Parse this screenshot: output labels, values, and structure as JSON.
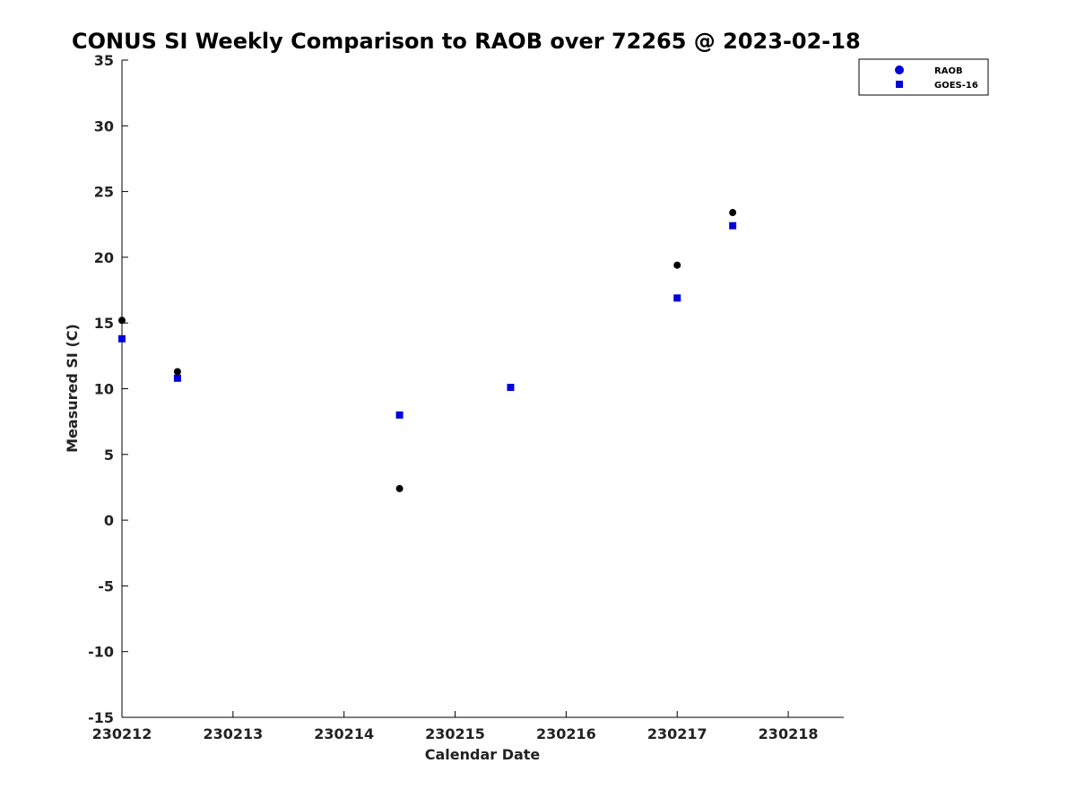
{
  "chart_data": {
    "type": "scatter",
    "title": "CONUS SI Weekly Comparison to RAOB over 72265 @ 2023-02-18",
    "xlabel": "Calendar Date",
    "ylabel": "Measured SI (C)",
    "xlim": [
      0,
      6.5
    ],
    "ylim": [
      -15,
      35
    ],
    "x_ticks": [
      {
        "value": 0,
        "label": "230212"
      },
      {
        "value": 1,
        "label": "230213"
      },
      {
        "value": 2,
        "label": "230214"
      },
      {
        "value": 3,
        "label": "230215"
      },
      {
        "value": 4,
        "label": "230216"
      },
      {
        "value": 5,
        "label": "230217"
      },
      {
        "value": 6,
        "label": "230218"
      }
    ],
    "y_ticks": [
      35,
      30,
      25,
      20,
      15,
      10,
      5,
      0,
      -5,
      -10,
      -15
    ],
    "grid": false,
    "legend_position": "top-right",
    "series": [
      {
        "name": "RAOB",
        "marker": "circle",
        "color": "#000000",
        "legend_color": "#0000dd",
        "points": [
          {
            "x": 0.0,
            "y": 15.2
          },
          {
            "x": 0.5,
            "y": 11.3
          },
          {
            "x": 2.5,
            "y": 2.4
          },
          {
            "x": 5.0,
            "y": 19.4
          },
          {
            "x": 5.5,
            "y": 23.4
          }
        ]
      },
      {
        "name": "GOES-16",
        "marker": "square",
        "color": "#0000dd",
        "legend_color": "#0000dd",
        "points": [
          {
            "x": 0.0,
            "y": 13.8
          },
          {
            "x": 0.5,
            "y": 10.8
          },
          {
            "x": 2.5,
            "y": 8.0
          },
          {
            "x": 3.5,
            "y": 10.1
          },
          {
            "x": 5.0,
            "y": 16.9
          },
          {
            "x": 5.5,
            "y": 22.4
          }
        ]
      }
    ]
  }
}
